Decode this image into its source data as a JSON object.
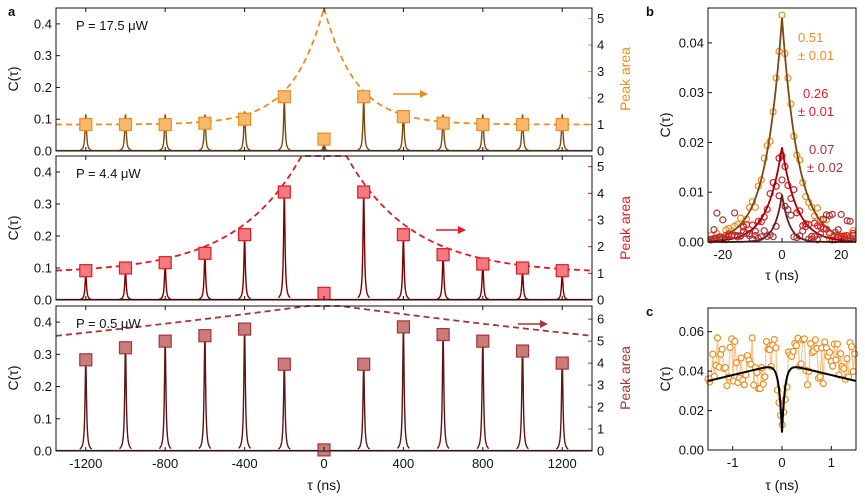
{
  "figure": {
    "panel_labels": [
      "a",
      "b",
      "c"
    ],
    "tau_label": "τ (ns)",
    "c_label": "C(τ)",
    "peak_area_label": "Peak area"
  },
  "colors": {
    "orange": "#f08c1e",
    "orange_line": "#7a4a10",
    "red": "#e01b24",
    "red_line": "#7a0000",
    "maroon": "#a83434",
    "maroon_line": "#5c1414",
    "fit": "#000000"
  },
  "chart_data": [
    {
      "id": "a1",
      "type": "line",
      "annotation": "P = 17.5 μW",
      "xlabel": "",
      "ylabel": "C(τ)",
      "y2label": "Peak area",
      "xlim": [
        -1350,
        1350
      ],
      "ylim": [
        0,
        0.45
      ],
      "y2lim": [
        0,
        5.4
      ],
      "xticks": [
        -1200,
        -800,
        -400,
        0,
        400,
        800,
        1200
      ],
      "yticks": [
        0.0,
        0.1,
        0.2,
        0.3,
        0.4
      ],
      "y2ticks": [
        0,
        1,
        2,
        3,
        4,
        5
      ],
      "peak_positions": [
        -1200,
        -1000,
        -800,
        -600,
        -400,
        -200,
        0,
        200,
        400,
        600,
        800,
        1000,
        1200
      ],
      "peak_heights": [
        0.115,
        0.115,
        0.115,
        0.115,
        0.125,
        0.16,
        0.025,
        0.16,
        0.125,
        0.115,
        0.115,
        0.115,
        0.115
      ],
      "series": [
        {
          "name": "Peak area",
          "x": [
            -1200,
            -1000,
            -800,
            -600,
            -400,
            -200,
            0,
            200,
            400,
            600,
            800,
            1000,
            1200
          ],
          "values": [
            1.0,
            1.0,
            1.0,
            1.05,
            1.2,
            2.05,
            0.45,
            2.05,
            1.3,
            1.05,
            1.0,
            1.0,
            1.0
          ]
        }
      ],
      "fit": {
        "baseline": 1.0,
        "amplitude": 4.4,
        "decay_ns": 160
      }
    },
    {
      "id": "a2",
      "type": "line",
      "annotation": "P = 4.4 μW",
      "xlabel": "",
      "ylabel": "C(τ)",
      "y2label": "Peak area",
      "xlim": [
        -1350,
        1350
      ],
      "ylim": [
        0,
        0.45
      ],
      "y2lim": [
        0,
        5.4
      ],
      "xticks": [
        -1200,
        -800,
        -400,
        0,
        400,
        800,
        1200
      ],
      "yticks": [
        0.0,
        0.1,
        0.2,
        0.3,
        0.4
      ],
      "y2ticks": [
        0,
        1,
        2,
        3,
        4,
        5
      ],
      "peak_positions": [
        -1200,
        -1000,
        -800,
        -600,
        -400,
        -200,
        0,
        200,
        400,
        600,
        800,
        1000,
        1200
      ],
      "peak_heights": [
        0.08,
        0.09,
        0.11,
        0.14,
        0.19,
        0.33,
        0.02,
        0.33,
        0.19,
        0.14,
        0.11,
        0.09,
        0.08
      ],
      "series": [
        {
          "name": "Peak area",
          "x": [
            -1200,
            -1000,
            -800,
            -600,
            -400,
            -200,
            0,
            200,
            400,
            600,
            800,
            1000,
            1200
          ],
          "values": [
            1.1,
            1.2,
            1.4,
            1.75,
            2.45,
            4.05,
            0.25,
            4.05,
            2.45,
            1.7,
            1.35,
            1.2,
            1.1
          ]
        }
      ],
      "fit": {
        "baseline": 1.0,
        "amplitude": 6.2,
        "decay_ns": 330
      }
    },
    {
      "id": "a3",
      "type": "line",
      "annotation": "P = 0.5 μW",
      "xlabel": "τ (ns)",
      "ylabel": "C(τ)",
      "y2label": "Peak area",
      "xlim": [
        -1350,
        1350
      ],
      "ylim": [
        0,
        0.45
      ],
      "y2lim": [
        0,
        6.6
      ],
      "xticks": [
        -1200,
        -800,
        -400,
        0,
        400,
        800,
        1200
      ],
      "xticklabels": [
        "-1200",
        "-800",
        "-400",
        "0",
        "400",
        "800",
        "1200"
      ],
      "yticks": [
        0.0,
        0.1,
        0.2,
        0.3,
        0.4
      ],
      "y2ticks": [
        0,
        1,
        2,
        3,
        4,
        5,
        6
      ],
      "peak_positions": [
        -1200,
        -1000,
        -800,
        -600,
        -400,
        -200,
        0,
        200,
        400,
        600,
        800,
        1000,
        1200
      ],
      "peak_heights": [
        0.28,
        0.33,
        0.34,
        0.36,
        0.38,
        0.27,
        0.01,
        0.27,
        0.38,
        0.36,
        0.34,
        0.32,
        0.28
      ],
      "series": [
        {
          "name": "Peak area",
          "x": [
            -1200,
            -1000,
            -800,
            -600,
            -400,
            -200,
            0,
            200,
            400,
            600,
            800,
            1000,
            1200
          ],
          "values": [
            4.15,
            4.7,
            5.0,
            5.25,
            5.55,
            3.95,
            0.05,
            3.95,
            5.65,
            5.3,
            5.0,
            4.55,
            4.0
          ]
        }
      ],
      "fit": {
        "baseline": 0.0,
        "amplitude": 6.7,
        "decay_ns": 5500
      }
    },
    {
      "id": "b",
      "type": "scatter",
      "xlabel": "τ (ns)",
      "ylabel": "C(τ)",
      "xlim": [
        -25,
        25
      ],
      "ylim": [
        0,
        0.047
      ],
      "xticks": [
        -20,
        0,
        20
      ],
      "yticks": [
        0.0,
        0.01,
        0.02,
        0.03,
        0.04
      ],
      "series": [
        {
          "name": "0.51 ± 0.01",
          "label_lines": [
            "0.51",
            "± 0.01"
          ],
          "peak": 0.045,
          "width_ns": 5.5
        },
        {
          "name": "0.26 ± 0.01",
          "label_lines": [
            "0.26",
            "± 0.01"
          ],
          "peak": 0.019,
          "width_ns": 5.0
        },
        {
          "name": "0.07 ± 0.02",
          "label_lines": [
            "0.07",
            "± 0.02"
          ],
          "peak": 0.0095,
          "width_ns": 2.5
        }
      ]
    },
    {
      "id": "c",
      "type": "scatter",
      "xlabel": "τ (ns)",
      "ylabel": "C(τ)",
      "xlim": [
        -1.5,
        1.5
      ],
      "ylim": [
        0,
        0.072
      ],
      "xticks": [
        -1,
        0,
        1
      ],
      "yticks": [
        0.0,
        0.02,
        0.04,
        0.06
      ],
      "fit": {
        "level": 0.044,
        "dip_value": 0.01
      }
    }
  ]
}
